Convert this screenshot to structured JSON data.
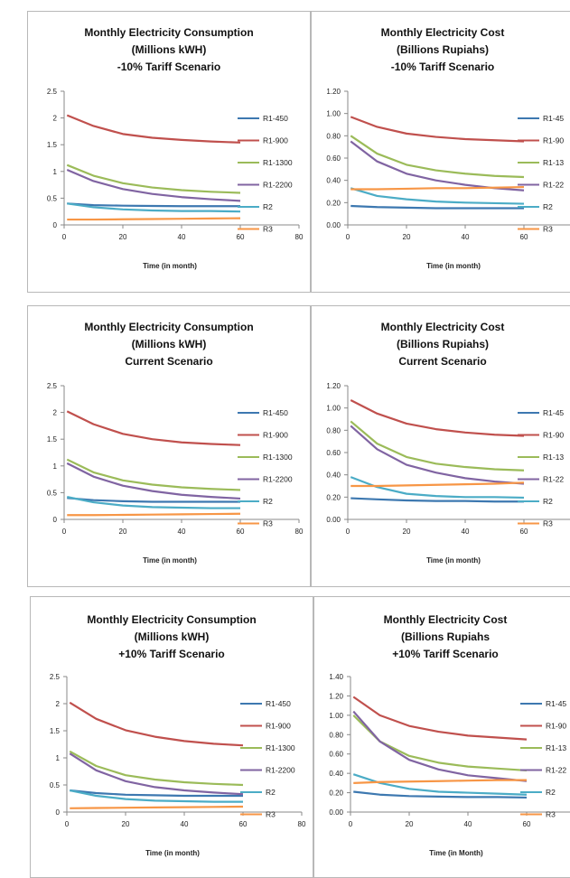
{
  "series_colors": {
    "R1-450": "#3d78b0",
    "R1-900": "#c0504d",
    "R1-1300": "#9bbb59",
    "R1-2200": "#8064a2",
    "R2": "#4bacc6",
    "R3": "#f79646"
  },
  "chart_data": [
    {
      "type": "line",
      "title": [
        "Monthly Electricity Consumption",
        "(Millions kWH)",
        "-10% Tariff Scenario"
      ],
      "xlabel": "Time (in month)",
      "xlim": [
        0,
        80
      ],
      "xticks": [
        "0",
        "20",
        "40",
        "60",
        "80"
      ],
      "ylim": [
        0,
        2.5
      ],
      "yticks": [
        "0",
        "0.5",
        "1",
        "1.5",
        "2",
        "2.5"
      ],
      "x": [
        1,
        10,
        20,
        30,
        40,
        50,
        60
      ],
      "series": [
        {
          "name": "R1-450",
          "values": [
            0.4,
            0.37,
            0.36,
            0.355,
            0.35,
            0.35,
            0.35
          ]
        },
        {
          "name": "R1-900",
          "values": [
            2.05,
            1.85,
            1.7,
            1.63,
            1.59,
            1.56,
            1.54
          ]
        },
        {
          "name": "R1-1300",
          "values": [
            1.12,
            0.92,
            0.78,
            0.7,
            0.65,
            0.62,
            0.6
          ]
        },
        {
          "name": "R1-2200",
          "values": [
            1.03,
            0.82,
            0.67,
            0.58,
            0.52,
            0.48,
            0.45
          ]
        },
        {
          "name": "R2",
          "values": [
            0.4,
            0.33,
            0.29,
            0.27,
            0.26,
            0.26,
            0.25
          ]
        },
        {
          "name": "R3",
          "values": [
            0.1,
            0.1,
            0.105,
            0.11,
            0.115,
            0.12,
            0.125
          ]
        }
      ]
    },
    {
      "type": "line",
      "title": [
        "Monthly Electricity Cost",
        "(Billions Rupiahs)",
        "-10% Tariff Scenario"
      ],
      "xlabel": "Time (in month)",
      "xlim": [
        0,
        80
      ],
      "xticks": [
        "0",
        "20",
        "40",
        "60",
        "8"
      ],
      "ylim": [
        0,
        1.2
      ],
      "yticks": [
        "0.00",
        "0.20",
        "0.40",
        "0.60",
        "0.80",
        "1.00",
        "1.20"
      ],
      "x": [
        1,
        10,
        20,
        30,
        40,
        50,
        60
      ],
      "series": [
        {
          "name": "R1-45",
          "values": [
            0.17,
            0.16,
            0.155,
            0.15,
            0.15,
            0.15,
            0.15
          ]
        },
        {
          "name": "R1-90",
          "values": [
            0.97,
            0.88,
            0.82,
            0.79,
            0.77,
            0.76,
            0.75
          ]
        },
        {
          "name": "R1-13",
          "values": [
            0.8,
            0.64,
            0.54,
            0.49,
            0.46,
            0.44,
            0.43
          ]
        },
        {
          "name": "R1-22",
          "values": [
            0.75,
            0.57,
            0.46,
            0.4,
            0.36,
            0.33,
            0.31
          ]
        },
        {
          "name": "R2",
          "values": [
            0.33,
            0.26,
            0.23,
            0.21,
            0.2,
            0.195,
            0.19
          ]
        },
        {
          "name": "R3",
          "values": [
            0.32,
            0.32,
            0.325,
            0.33,
            0.33,
            0.335,
            0.34
          ]
        }
      ]
    },
    {
      "type": "line",
      "title": [
        "Monthly Electricity Consumption",
        "(Millions kWH)",
        "Current Scenario"
      ],
      "xlabel": "Time (in month)",
      "xlim": [
        0,
        80
      ],
      "xticks": [
        "0",
        "20",
        "40",
        "60",
        "80"
      ],
      "ylim": [
        0,
        2.5
      ],
      "yticks": [
        "0",
        "0.5",
        "1",
        "1.5",
        "2",
        "2.5"
      ],
      "x": [
        1,
        10,
        20,
        30,
        40,
        50,
        60
      ],
      "series": [
        {
          "name": "R1-450",
          "values": [
            0.4,
            0.36,
            0.34,
            0.33,
            0.33,
            0.33,
            0.33
          ]
        },
        {
          "name": "R1-900",
          "values": [
            2.02,
            1.78,
            1.6,
            1.5,
            1.44,
            1.41,
            1.39
          ]
        },
        {
          "name": "R1-1300",
          "values": [
            1.12,
            0.88,
            0.73,
            0.65,
            0.6,
            0.57,
            0.55
          ]
        },
        {
          "name": "R1-2200",
          "values": [
            1.05,
            0.8,
            0.63,
            0.53,
            0.46,
            0.42,
            0.39
          ]
        },
        {
          "name": "R2",
          "values": [
            0.42,
            0.32,
            0.26,
            0.23,
            0.22,
            0.21,
            0.21
          ]
        },
        {
          "name": "R3",
          "values": [
            0.08,
            0.08,
            0.085,
            0.09,
            0.095,
            0.1,
            0.105
          ]
        }
      ]
    },
    {
      "type": "line",
      "title": [
        "Monthly Electricity Cost",
        "(Billions Rupiahs)",
        "Current Scenario"
      ],
      "xlabel": "Time (in month)",
      "xlim": [
        0,
        80
      ],
      "xticks": [
        "0",
        "20",
        "40",
        "60",
        "8"
      ],
      "ylim": [
        0,
        1.2
      ],
      "yticks": [
        "0.00",
        "0.20",
        "0.40",
        "0.60",
        "0.80",
        "1.00",
        "1.20"
      ],
      "x": [
        1,
        10,
        20,
        30,
        40,
        50,
        60
      ],
      "series": [
        {
          "name": "R1-45",
          "values": [
            0.19,
            0.18,
            0.17,
            0.165,
            0.165,
            0.16,
            0.16
          ]
        },
        {
          "name": "R1-90",
          "values": [
            1.07,
            0.95,
            0.86,
            0.81,
            0.78,
            0.76,
            0.75
          ]
        },
        {
          "name": "R1-13",
          "values": [
            0.88,
            0.68,
            0.56,
            0.5,
            0.47,
            0.45,
            0.44
          ]
        },
        {
          "name": "R1-22",
          "values": [
            0.84,
            0.63,
            0.49,
            0.42,
            0.37,
            0.34,
            0.32
          ]
        },
        {
          "name": "R2",
          "values": [
            0.38,
            0.29,
            0.23,
            0.21,
            0.2,
            0.2,
            0.195
          ]
        },
        {
          "name": "R3",
          "values": [
            0.3,
            0.3,
            0.305,
            0.31,
            0.315,
            0.32,
            0.33
          ]
        }
      ]
    },
    {
      "type": "line",
      "title": [
        "Monthly Electricity Consumption",
        "(Millions kWH)",
        "+10% Tariff Scenario"
      ],
      "xlabel": "Time (in month)",
      "xlim": [
        0,
        80
      ],
      "xticks": [
        "0",
        "20",
        "40",
        "60",
        "80"
      ],
      "ylim": [
        0,
        2.5
      ],
      "yticks": [
        "0",
        "0.5",
        "1",
        "1.5",
        "2",
        "2.5"
      ],
      "x": [
        1,
        10,
        20,
        30,
        40,
        50,
        60
      ],
      "series": [
        {
          "name": "R1-450",
          "values": [
            0.4,
            0.35,
            0.32,
            0.31,
            0.3,
            0.3,
            0.3
          ]
        },
        {
          "name": "R1-900",
          "values": [
            2.02,
            1.72,
            1.51,
            1.39,
            1.31,
            1.26,
            1.23
          ]
        },
        {
          "name": "R1-1300",
          "values": [
            1.12,
            0.85,
            0.68,
            0.6,
            0.55,
            0.52,
            0.5
          ]
        },
        {
          "name": "R1-2200",
          "values": [
            1.08,
            0.77,
            0.57,
            0.46,
            0.4,
            0.36,
            0.33
          ]
        },
        {
          "name": "R2",
          "values": [
            0.4,
            0.3,
            0.24,
            0.21,
            0.2,
            0.19,
            0.19
          ]
        },
        {
          "name": "R3",
          "values": [
            0.07,
            0.075,
            0.08,
            0.085,
            0.09,
            0.095,
            0.1
          ]
        }
      ]
    },
    {
      "type": "line",
      "title": [
        "Monthly Electricity Cost",
        "(Billions Rupiahs",
        "+10% Tariff Scenario"
      ],
      "xlabel": "Time (in Month)",
      "xlim": [
        0,
        80
      ],
      "xticks": [
        "0",
        "20",
        "40",
        "60"
      ],
      "ylim": [
        0,
        1.4
      ],
      "yticks": [
        "0.00",
        "0.20",
        "0.40",
        "0.60",
        "0.80",
        "1.00",
        "1.20",
        "1.40"
      ],
      "x": [
        1,
        10,
        20,
        30,
        40,
        50,
        60
      ],
      "series": [
        {
          "name": "R1-45",
          "values": [
            0.21,
            0.18,
            0.165,
            0.16,
            0.155,
            0.155,
            0.15
          ]
        },
        {
          "name": "R1-90",
          "values": [
            1.19,
            1.0,
            0.89,
            0.83,
            0.79,
            0.77,
            0.75
          ]
        },
        {
          "name": "R1-13",
          "values": [
            1.0,
            0.73,
            0.58,
            0.51,
            0.47,
            0.45,
            0.43
          ]
        },
        {
          "name": "R1-22",
          "values": [
            1.04,
            0.73,
            0.54,
            0.44,
            0.38,
            0.35,
            0.32
          ]
        },
        {
          "name": "R2",
          "values": [
            0.39,
            0.3,
            0.24,
            0.21,
            0.2,
            0.19,
            0.18
          ]
        },
        {
          "name": "R3",
          "values": [
            0.3,
            0.31,
            0.315,
            0.32,
            0.325,
            0.33,
            0.33
          ]
        }
      ]
    }
  ]
}
